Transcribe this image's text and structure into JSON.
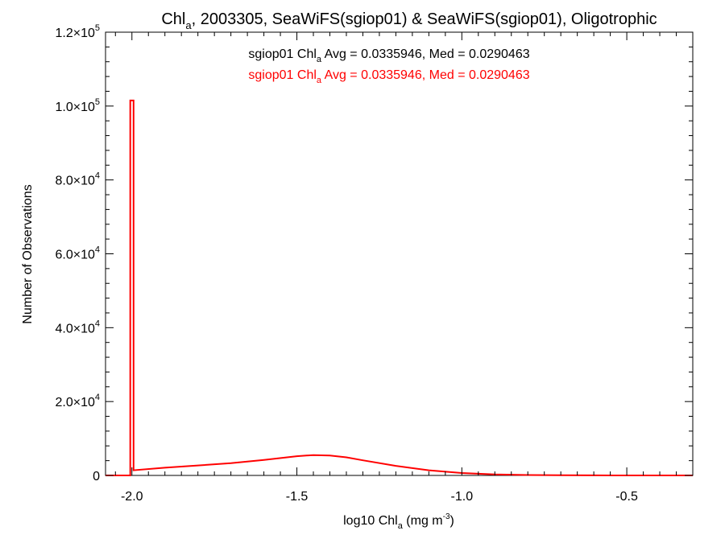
{
  "chart_data": {
    "type": "line",
    "title": {
      "prefix": "Chl",
      "sub": "a",
      "suffix": ", 2003305, SeaWiFS(sgiop01) & SeaWiFS(sgiop01), Oligotrophic"
    },
    "xlabel": {
      "prefix": "log10 Chl",
      "sub": "a",
      "mid": " (mg m",
      "sup": "-3",
      "suffix": ")"
    },
    "ylabel": "Number of Observations",
    "xlim": [
      -2.08,
      -0.3
    ],
    "ylim": [
      0,
      120000
    ],
    "x_ticks": [
      {
        "value": -2.0,
        "label": "-2.0"
      },
      {
        "value": -1.5,
        "label": "-1.5"
      },
      {
        "value": -1.0,
        "label": "-1.0"
      },
      {
        "value": -0.5,
        "label": "-0.5"
      }
    ],
    "y_ticks": [
      {
        "value": 0,
        "base": "0",
        "exp": ""
      },
      {
        "value": 20000,
        "base": "2.0×10",
        "exp": "4"
      },
      {
        "value": 40000,
        "base": "4.0×10",
        "exp": "4"
      },
      {
        "value": 60000,
        "base": "6.0×10",
        "exp": "4"
      },
      {
        "value": 80000,
        "base": "8.0×10",
        "exp": "4"
      },
      {
        "value": 100000,
        "base": "1.0×10",
        "exp": "5"
      },
      {
        "value": 120000,
        "base": "1.2×10",
        "exp": "5"
      }
    ],
    "annotations": [
      {
        "prefix": "sgiop01 Chl",
        "sub": "a",
        "suffix": " Avg = 0.0335946, Med = 0.0290463",
        "color": "#000000"
      },
      {
        "prefix": "sgiop01 Chl",
        "sub": "a",
        "suffix": " Avg = 0.0335946, Med = 0.0290463",
        "color": "#ff0000"
      }
    ],
    "series": [
      {
        "color": "#ff0000",
        "step": true,
        "x": [
          -2.08,
          -2.005,
          -2.005,
          -1.995,
          -1.995,
          -1.9,
          -1.8,
          -1.7,
          -1.6,
          -1.5,
          -1.45,
          -1.4,
          -1.35,
          -1.3,
          -1.2,
          -1.1,
          -1.0,
          -0.9,
          -0.8,
          -0.7,
          -0.6,
          -0.5,
          -0.4,
          -0.3
        ],
        "y": [
          0,
          0,
          101500,
          101500,
          1400,
          2100,
          2700,
          3300,
          4200,
          5200,
          5500,
          5400,
          4900,
          4100,
          2600,
          1400,
          650,
          270,
          110,
          50,
          20,
          10,
          5,
          0
        ]
      }
    ]
  }
}
